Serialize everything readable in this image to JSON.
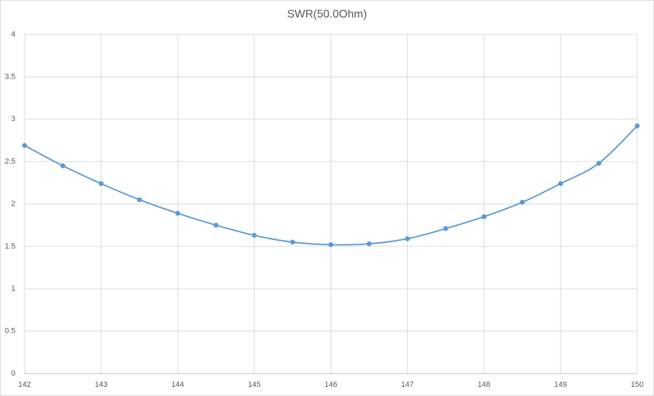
{
  "chart_data": {
    "type": "line",
    "title": "SWR(50.0Ohm)",
    "x": [
      142,
      142.5,
      143,
      143.5,
      144,
      144.5,
      145,
      145.5,
      146,
      146.5,
      147,
      147.5,
      148,
      148.5,
      149,
      149.5,
      150
    ],
    "values": [
      2.69,
      2.45,
      2.24,
      2.05,
      1.89,
      1.75,
      1.63,
      1.55,
      1.52,
      1.53,
      1.59,
      1.71,
      1.85,
      2.02,
      2.24,
      2.48,
      2.92
    ],
    "color": "#5b9bd5",
    "smooth": true,
    "xlim": [
      142,
      150
    ],
    "xticks": [
      142,
      143,
      144,
      145,
      146,
      147,
      148,
      149,
      150
    ],
    "ylim": [
      0,
      4
    ],
    "yticks": [
      0,
      0.5,
      1,
      1.5,
      2,
      2.5,
      3,
      3.5,
      4
    ],
    "grid": true
  }
}
